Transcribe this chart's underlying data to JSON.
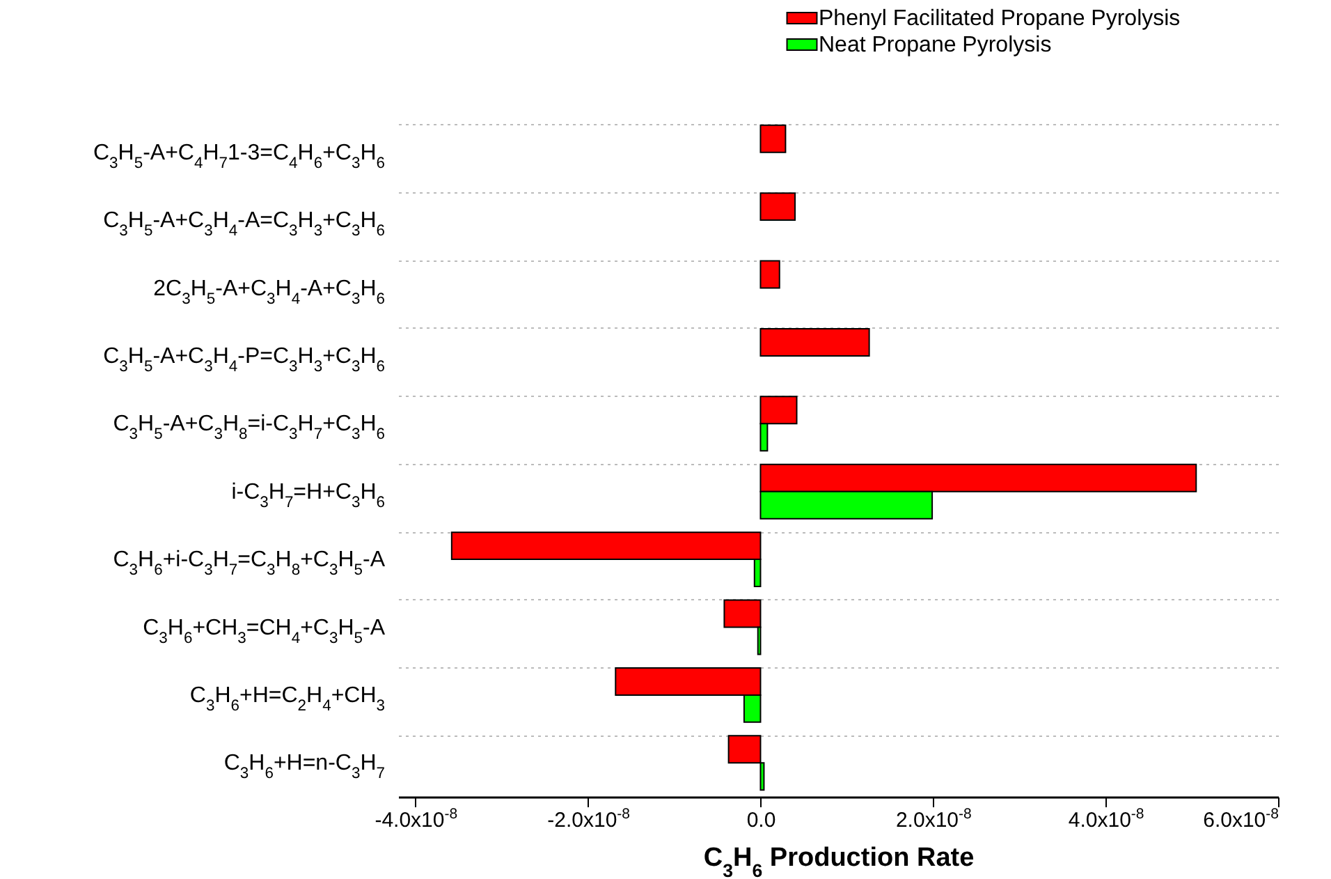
{
  "chart_data": {
    "type": "bar",
    "orientation": "horizontal",
    "xlabel": "C$_{3}$H$_{6}$ Production Rate",
    "categories": [
      "C$_{3}$H$_{5}$-A+C$_{4}$H$_{7}$1-3=C$_{4}$H$_{6}$+C$_{3}$H$_{6}$",
      "C$_{3}$H$_{5}$-A+C$_{3}$H$_{4}$-A=C$_{3}$H$_{3}$+C$_{3}$H$_{6}$",
      "2C$_{3}$H$_{5}$-A+C$_{3}$H$_{4}$-A+C$_{3}$H$_{6}$",
      "C$_{3}$H$_{5}$-A+C$_{3}$H$_{4}$-P=C$_{3}$H$_{3}$+C$_{3}$H$_{6}$",
      "C$_{3}$H$_{5}$-A+C$_{3}$H$_{8}$=i-C$_{3}$H$_{7}$+C$_{3}$H$_{6}$",
      "i-C$_{3}$H$_{7}$=H+C$_{3}$H$_{6}$",
      "C$_{3}$H$_{6}$+i-C$_{3}$H$_{7}$=C$_{3}$H$_{8}$+C$_{3}$H$_{5}$-A",
      "C$_{3}$H$_{6}$+CH$_{3}$=CH$_{4}$+C$_{3}$H$_{5}$-A",
      "C$_{3}$H$_{6}$+H=C$_{2}$H$_{4}$+CH$_{3}$",
      "C$_{3}$H$_{6}$+H=n-C$_{3}$H$_{7}$"
    ],
    "series": [
      {
        "name": "Phenyl Facilitated Propane Pyrolysis",
        "color": "#ff0000",
        "values": [
          2.9e-09,
          4e-09,
          2.2e-09,
          1.26e-08,
          4.2e-09,
          5.05e-08,
          -3.58e-08,
          -4.2e-09,
          -1.68e-08,
          -3.7e-09
        ]
      },
      {
        "name": "Neat Propane Pyrolysis",
        "color": "#00ff00",
        "values": [
          null,
          null,
          null,
          null,
          8e-10,
          1.99e-08,
          -7e-10,
          -3e-10,
          -1.9e-09,
          4e-10
        ]
      }
    ],
    "xlim": [
      -4.2e-08,
      6e-08
    ],
    "xticks": [
      {
        "value": -4e-08,
        "label": "-4.0x10$^{-8}$"
      },
      {
        "value": -2e-08,
        "label": "-2.0x10$^{-8}$"
      },
      {
        "value": 0,
        "label": "0.0"
      },
      {
        "value": 2e-08,
        "label": "2.0x10$^{-8}$"
      },
      {
        "value": 4e-08,
        "label": "4.0x10$^{-8}$"
      },
      {
        "value": 6e-08,
        "label": "6.0x10$^{-8}$"
      }
    ],
    "grid": "y",
    "legend": "top right"
  }
}
